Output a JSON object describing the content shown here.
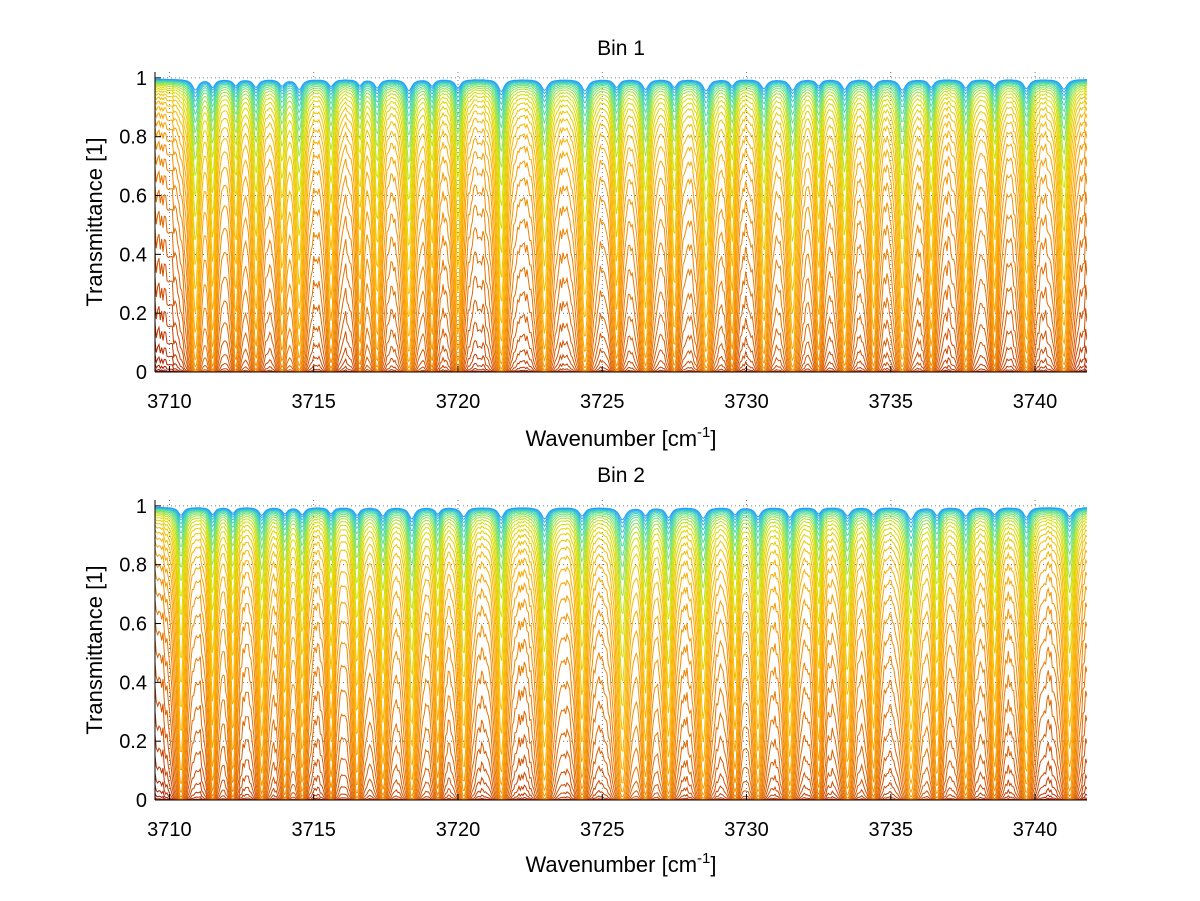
{
  "chart_data": [
    {
      "type": "line",
      "title": "Bin 1",
      "xlabel": "Wavenumber [cm",
      "xlabel_sup": "-1",
      "xlabel_end": "]",
      "ylabel": "Transmittance [1]",
      "xlim": [
        3709.5,
        3741.8
      ],
      "ylim": [
        0,
        1.02
      ],
      "xticks": [
        3710,
        3715,
        3720,
        3725,
        3730,
        3735,
        3740
      ],
      "xtick_labels": [
        "3710",
        "3715",
        "3720",
        "3725",
        "3730",
        "3735",
        "3740"
      ],
      "yticks": [
        0,
        0.2,
        0.4,
        0.6,
        0.8,
        1
      ],
      "ytick_labels": [
        "0",
        "0.2",
        "0.4",
        "0.6",
        "0.8",
        "1"
      ],
      "grid": "dotted",
      "series_count": 40,
      "colormap": [
        "#6b0000",
        "#a01400",
        "#d04a00",
        "#ee8000",
        "#ffb000",
        "#d8e000",
        "#50e0a0",
        "#20a0ff"
      ],
      "absorption_lines": [
        {
          "x": 3710.9,
          "depth": 0.75,
          "width": 0.12
        },
        {
          "x": 3711.5,
          "depth": 0.55,
          "width": 0.1
        },
        {
          "x": 3712.3,
          "depth": 0.45,
          "width": 0.1
        },
        {
          "x": 3713.0,
          "depth": 0.55,
          "width": 0.11
        },
        {
          "x": 3713.9,
          "depth": 0.45,
          "width": 0.11
        },
        {
          "x": 3714.5,
          "depth": 0.7,
          "width": 0.12
        },
        {
          "x": 3715.6,
          "depth": 0.5,
          "width": 0.11
        },
        {
          "x": 3716.6,
          "depth": 0.4,
          "width": 0.1
        },
        {
          "x": 3717.2,
          "depth": 0.6,
          "width": 0.11
        },
        {
          "x": 3718.3,
          "depth": 0.8,
          "width": 0.12
        },
        {
          "x": 3719.1,
          "depth": 0.45,
          "width": 0.1
        },
        {
          "x": 3720.0,
          "depth": 0.6,
          "width": 0.11
        },
        {
          "x": 3721.5,
          "depth": 0.85,
          "width": 0.12
        },
        {
          "x": 3723.0,
          "depth": 0.75,
          "width": 0.13
        },
        {
          "x": 3724.4,
          "depth": 0.8,
          "width": 0.13
        },
        {
          "x": 3725.5,
          "depth": 0.55,
          "width": 0.11
        },
        {
          "x": 3726.5,
          "depth": 0.7,
          "width": 0.12
        },
        {
          "x": 3727.5,
          "depth": 0.55,
          "width": 0.11
        },
        {
          "x": 3728.6,
          "depth": 0.8,
          "width": 0.13
        },
        {
          "x": 3729.5,
          "depth": 0.45,
          "width": 0.1
        },
        {
          "x": 3730.6,
          "depth": 0.65,
          "width": 0.12
        },
        {
          "x": 3731.6,
          "depth": 0.75,
          "width": 0.13
        },
        {
          "x": 3732.5,
          "depth": 0.45,
          "width": 0.1
        },
        {
          "x": 3733.4,
          "depth": 0.7,
          "width": 0.12
        },
        {
          "x": 3734.4,
          "depth": 0.55,
          "width": 0.11
        },
        {
          "x": 3735.4,
          "depth": 0.75,
          "width": 0.13
        },
        {
          "x": 3736.4,
          "depth": 0.55,
          "width": 0.11
        },
        {
          "x": 3737.6,
          "depth": 0.6,
          "width": 0.12
        },
        {
          "x": 3738.6,
          "depth": 0.45,
          "width": 0.1
        },
        {
          "x": 3739.7,
          "depth": 0.65,
          "width": 0.12
        },
        {
          "x": 3741.0,
          "depth": 0.7,
          "width": 0.13
        }
      ]
    },
    {
      "type": "line",
      "title": "Bin 2",
      "xlabel": "Wavenumber [cm",
      "xlabel_sup": "-1",
      "xlabel_end": "]",
      "ylabel": "Transmittance [1]",
      "xlim": [
        3709.5,
        3741.8
      ],
      "ylim": [
        0,
        1.02
      ],
      "xticks": [
        3710,
        3715,
        3720,
        3725,
        3730,
        3735,
        3740
      ],
      "xtick_labels": [
        "3710",
        "3715",
        "3720",
        "3725",
        "3730",
        "3735",
        "3740"
      ],
      "yticks": [
        0,
        0.2,
        0.4,
        0.6,
        0.8,
        1
      ],
      "ytick_labels": [
        "0",
        "0.2",
        "0.4",
        "0.6",
        "0.8",
        "1"
      ],
      "grid": "dotted",
      "series_count": 40,
      "colormap": [
        "#6b0000",
        "#a01400",
        "#d04a00",
        "#ee8000",
        "#ffb000",
        "#d8e000",
        "#50e0a0",
        "#20a0ff"
      ],
      "absorption_lines": [
        {
          "x": 3710.4,
          "depth": 0.55,
          "width": 0.11
        },
        {
          "x": 3711.5,
          "depth": 0.5,
          "width": 0.1
        },
        {
          "x": 3712.2,
          "depth": 0.4,
          "width": 0.1
        },
        {
          "x": 3713.2,
          "depth": 0.55,
          "width": 0.11
        },
        {
          "x": 3714.0,
          "depth": 0.45,
          "width": 0.1
        },
        {
          "x": 3714.6,
          "depth": 0.5,
          "width": 0.11
        },
        {
          "x": 3715.6,
          "depth": 0.45,
          "width": 0.1
        },
        {
          "x": 3716.5,
          "depth": 0.55,
          "width": 0.11
        },
        {
          "x": 3717.4,
          "depth": 0.6,
          "width": 0.11
        },
        {
          "x": 3718.4,
          "depth": 0.8,
          "width": 0.12
        },
        {
          "x": 3719.3,
          "depth": 0.45,
          "width": 0.1
        },
        {
          "x": 3720.2,
          "depth": 0.65,
          "width": 0.12
        },
        {
          "x": 3721.5,
          "depth": 0.7,
          "width": 0.12
        },
        {
          "x": 3723.0,
          "depth": 0.8,
          "width": 0.13
        },
        {
          "x": 3724.3,
          "depth": 0.6,
          "width": 0.12
        },
        {
          "x": 3725.7,
          "depth": 0.85,
          "width": 0.14
        },
        {
          "x": 3726.5,
          "depth": 0.55,
          "width": 0.11
        },
        {
          "x": 3727.3,
          "depth": 0.7,
          "width": 0.12
        },
        {
          "x": 3728.5,
          "depth": 0.75,
          "width": 0.13
        },
        {
          "x": 3729.6,
          "depth": 0.5,
          "width": 0.11
        },
        {
          "x": 3730.4,
          "depth": 0.65,
          "width": 0.12
        },
        {
          "x": 3731.5,
          "depth": 0.7,
          "width": 0.12
        },
        {
          "x": 3732.5,
          "depth": 0.45,
          "width": 0.1
        },
        {
          "x": 3733.5,
          "depth": 0.6,
          "width": 0.12
        },
        {
          "x": 3734.4,
          "depth": 0.5,
          "width": 0.11
        },
        {
          "x": 3735.7,
          "depth": 0.85,
          "width": 0.14
        },
        {
          "x": 3736.6,
          "depth": 0.55,
          "width": 0.11
        },
        {
          "x": 3737.6,
          "depth": 0.6,
          "width": 0.12
        },
        {
          "x": 3738.6,
          "depth": 0.5,
          "width": 0.11
        },
        {
          "x": 3739.7,
          "depth": 0.7,
          "width": 0.12
        },
        {
          "x": 3741.2,
          "depth": 0.65,
          "width": 0.13
        }
      ]
    }
  ]
}
